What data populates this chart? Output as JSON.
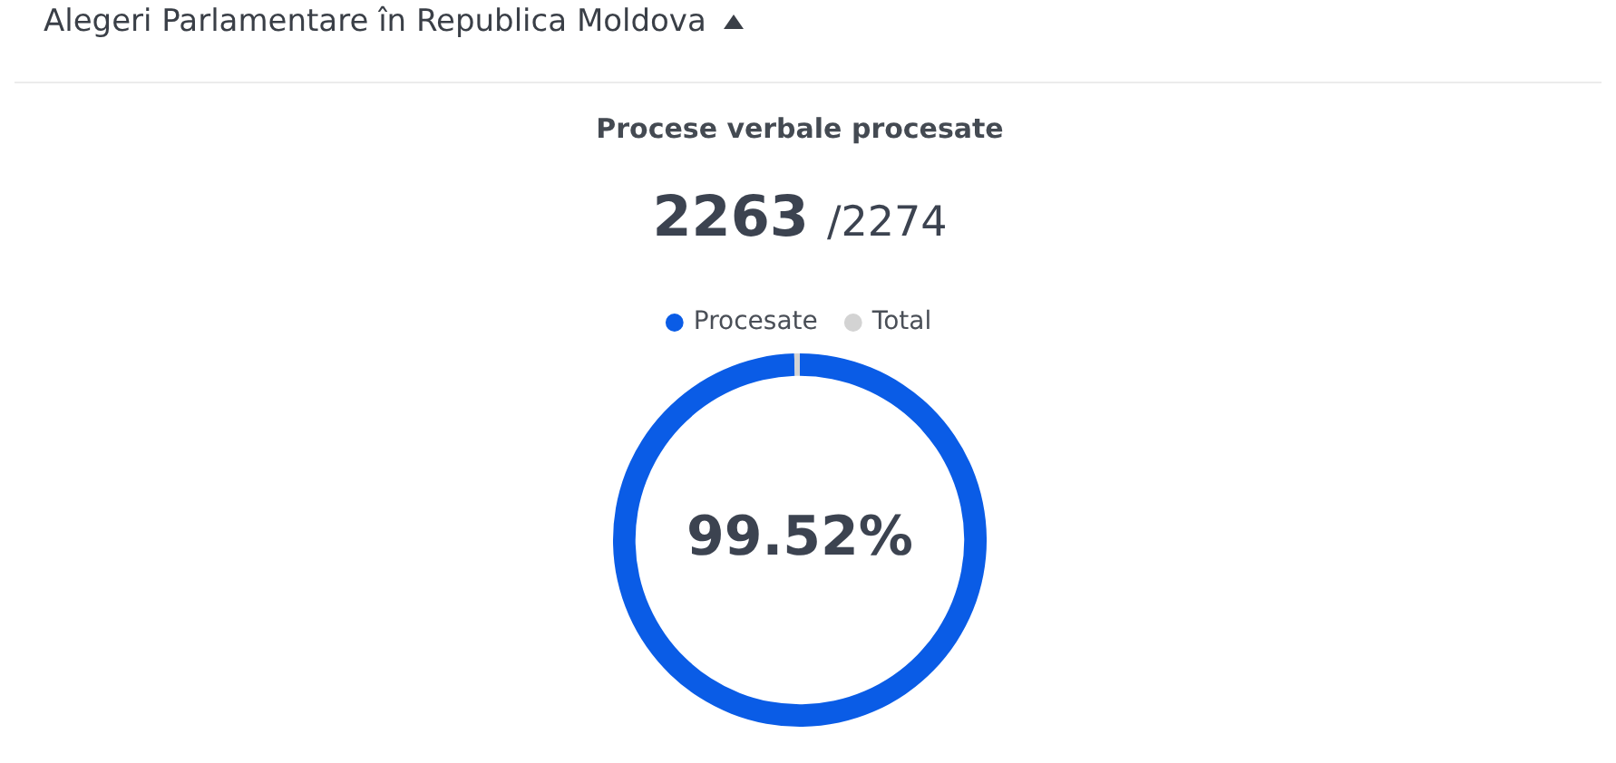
{
  "chart_data": {
    "type": "donut",
    "title": "Alegeri Parlamentare în Republica Moldova",
    "subtitle": "Procese verbale procesate",
    "annotations": [
      "2263",
      "/2274"
    ],
    "categories": [
      "Procesate",
      "Total"
    ],
    "values": [
      99.52,
      0.48
    ],
    "colors": [
      "#0a5ce6",
      "#d3d3d3"
    ],
    "value_labels": [
      "99.52%",
      null
    ],
    "legend": "top"
  }
}
